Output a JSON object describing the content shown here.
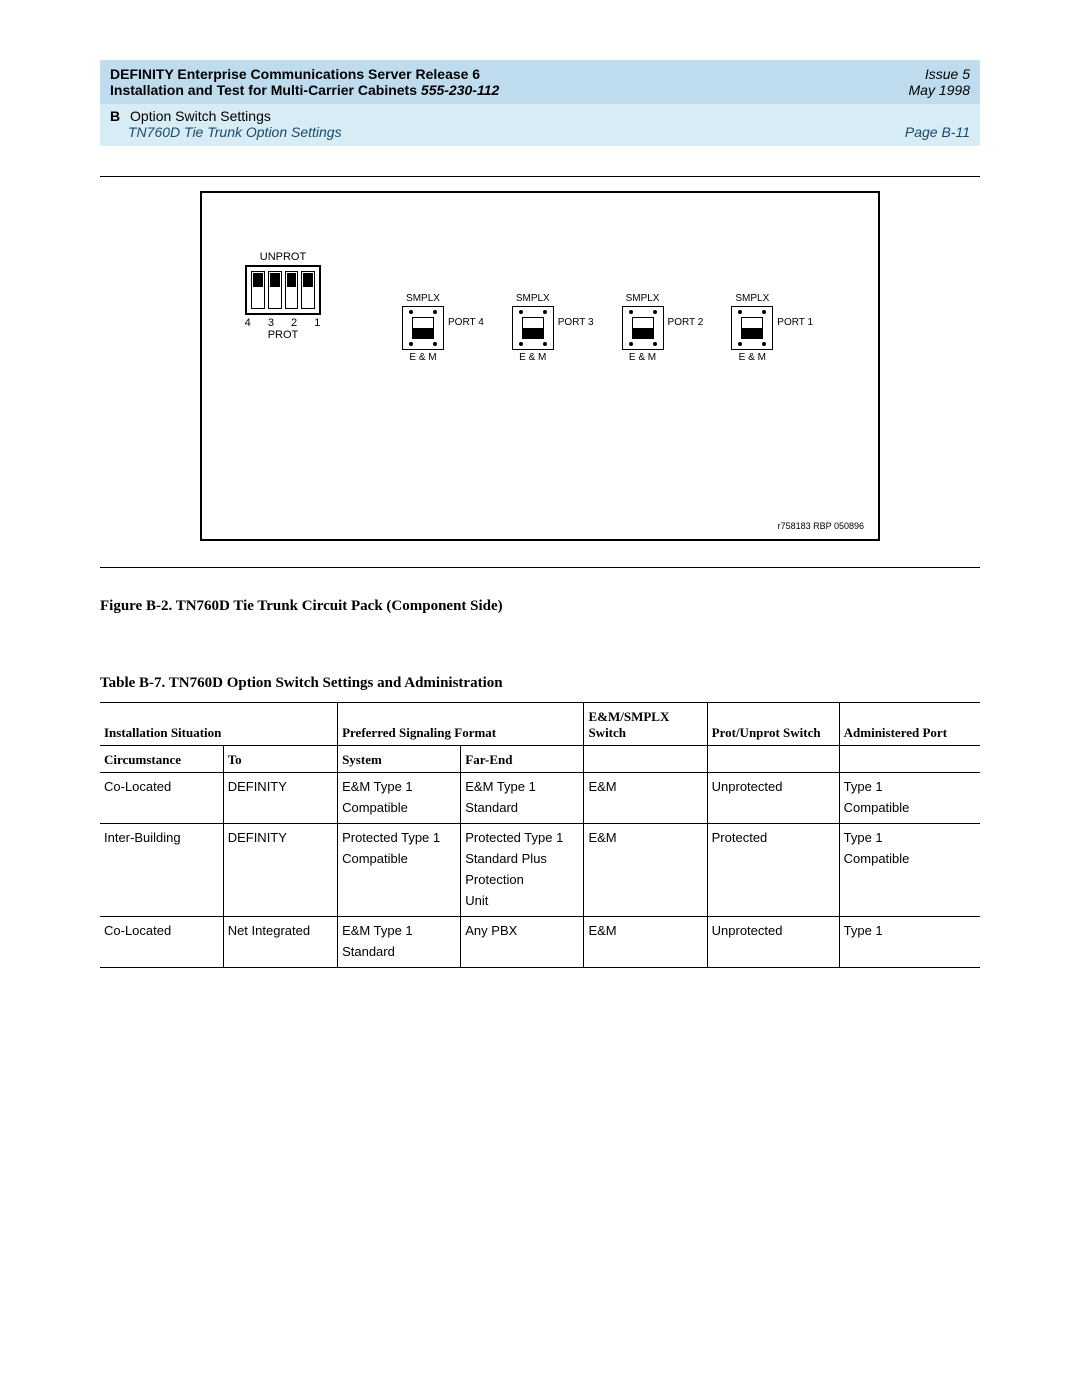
{
  "header": {
    "title_line1": "DEFINITY Enterprise Communications Server Release 6",
    "title_line2_a": "Installation and Test for Multi-Carrier Cabinets  ",
    "title_line2_b": "555-230-112",
    "issue": "Issue 5",
    "date": "May 1998",
    "section_letter": "B",
    "section_title": "Option Switch Settings",
    "subsection": "TN760D Tie Trunk Option Settings",
    "page_no": "Page B-11"
  },
  "diagram": {
    "dip": {
      "top_label": "UNPROT",
      "bot_label": "PROT",
      "nums": "4 3 2 1",
      "positions": [
        "up",
        "up",
        "up",
        "up"
      ]
    },
    "port_top": "SMPLX",
    "port_bot": "E & M",
    "ports": [
      "PORT 4",
      "PORT 3",
      "PORT 2",
      "PORT 1"
    ],
    "ref": "r758183 RBP 050896"
  },
  "figure_caption": "Figure B-2.    TN760D Tie Trunk Circuit Pack (Component Side)",
  "table_caption": "Table B-7.    TN760D Option Switch Settings and Administration",
  "table": {
    "h_install": "Installation Situation",
    "h_sigfmt": "Preferred Signaling Format",
    "h_em": "E&M/SMPLX Switch",
    "h_prot": "Prot/Unprot Switch",
    "h_admin": "Administered Port",
    "sub": {
      "circ": "Circumstance",
      "to": "To",
      "system": "System",
      "farend": "Far-End"
    },
    "rows": [
      {
        "circ": [
          "Co-Located"
        ],
        "to": [
          "DEFINITY"
        ],
        "system": [
          "E&M Type 1",
          "Compatible"
        ],
        "farend": [
          "E&M Type 1",
          "Standard"
        ],
        "em": [
          "E&M"
        ],
        "prot": [
          "Unprotected"
        ],
        "admin": [
          "Type 1",
          "Compatible"
        ]
      },
      {
        "circ": [
          "Inter-Building"
        ],
        "to": [
          "DEFINITY"
        ],
        "system": [
          "Protected Type 1",
          "Compatible"
        ],
        "farend": [
          "Protected Type 1",
          "Standard Plus",
          "Protection",
          "Unit"
        ],
        "em": [
          "E&M"
        ],
        "prot": [
          "Protected"
        ],
        "admin": [
          "Type 1",
          "Compatible"
        ]
      },
      {
        "circ": [
          "Co-Located"
        ],
        "to": [
          "Net Integrated"
        ],
        "system": [
          "E&M Type 1",
          "Standard"
        ],
        "farend": [
          "Any PBX"
        ],
        "em": [
          "E&M"
        ],
        "prot": [
          "Unprotected"
        ],
        "admin": [
          "Type 1"
        ]
      }
    ]
  }
}
